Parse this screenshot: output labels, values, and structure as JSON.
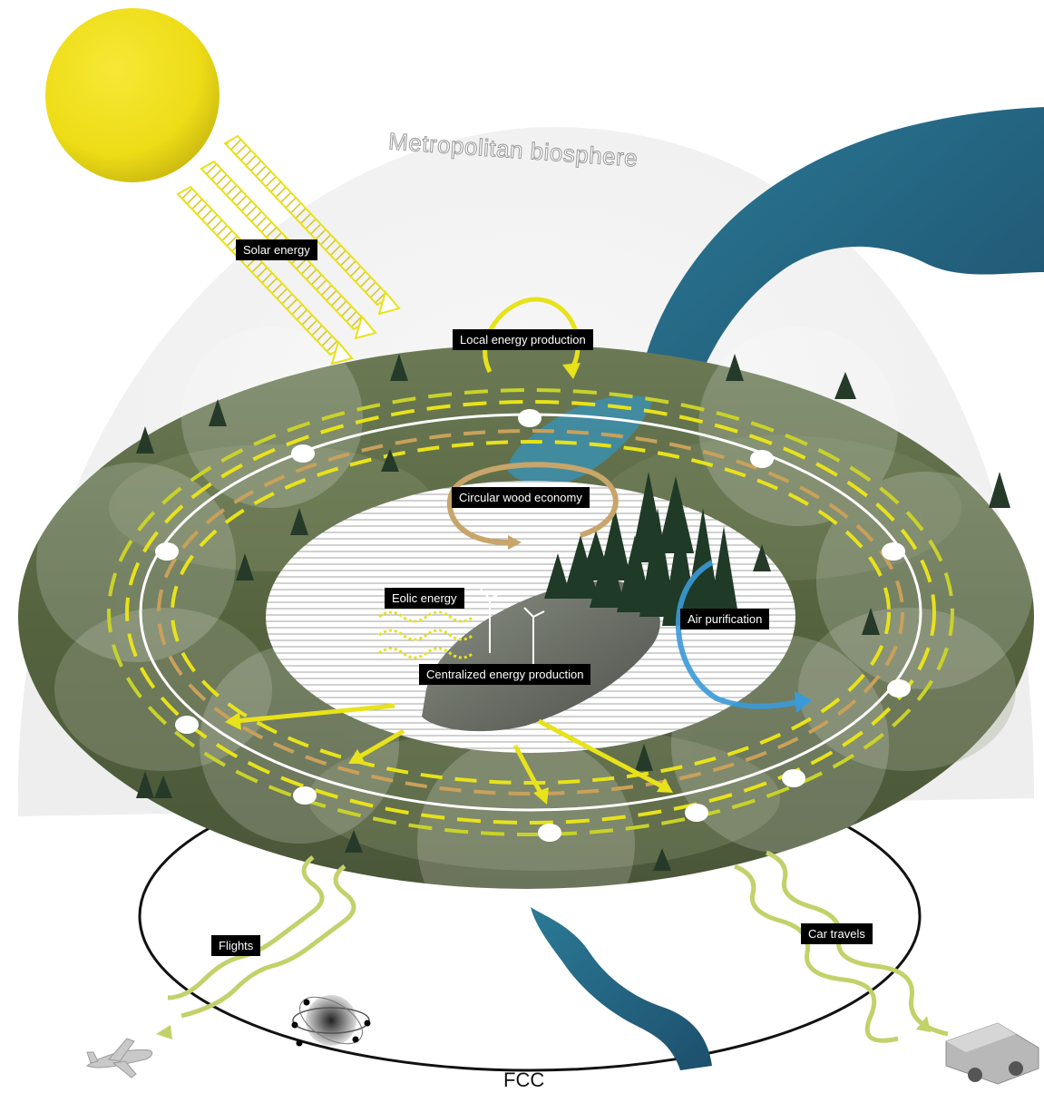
{
  "title": "Metropolitan biosphere",
  "labels": {
    "solar_energy": "Solar energy",
    "local_energy": "Local energy production",
    "circular_wood": "Circular wood economy",
    "eolic_energy": "Eolic energy",
    "air_purification": "Air purification",
    "centralized_energy": "Centralized energy production",
    "flights": "Flights",
    "car_travels": "Car travels",
    "fcc": "FCC"
  },
  "icons": [
    "sun-icon",
    "airplane-icon",
    "car-icon",
    "accelerator-icon",
    "wind-turbine-icon",
    "tree-icon"
  ],
  "colors": {
    "sun": "#f2e21c",
    "ring_yellow": "#e8e21a",
    "ring_olive": "#c8d22a",
    "ring_tan": "#c9a15a",
    "wood_arrow": "#c8a56a",
    "air_arrow": "#3a9ad8",
    "flow_green": "#c3d16a",
    "lake": "#2a6b8a",
    "land": "#5d6c4a",
    "forest": "#1f3a26"
  }
}
